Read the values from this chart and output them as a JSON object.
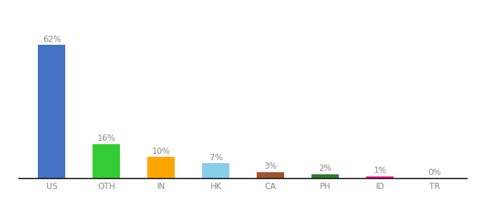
{
  "categories": [
    "US",
    "OTH",
    "IN",
    "HK",
    "CA",
    "PH",
    "ID",
    "TR"
  ],
  "values": [
    62,
    16,
    10,
    7,
    3,
    2,
    1,
    0
  ],
  "labels": [
    "62%",
    "16%",
    "10%",
    "7%",
    "3%",
    "2%",
    "1%",
    "0%"
  ],
  "bar_colors": [
    "#4472C4",
    "#33CC33",
    "#FFA500",
    "#87CEEB",
    "#A0522D",
    "#2E7D2E",
    "#FF1493",
    "#FF69B4"
  ],
  "background_color": "#FFFFFF",
  "ylim": [
    0,
    75
  ],
  "label_fontsize": 8.5,
  "tick_fontsize": 8.5,
  "label_color": "#888888",
  "tick_color": "#888888",
  "bar_width": 0.5,
  "figsize": [
    6.8,
    3.0
  ],
  "dpi": 100
}
